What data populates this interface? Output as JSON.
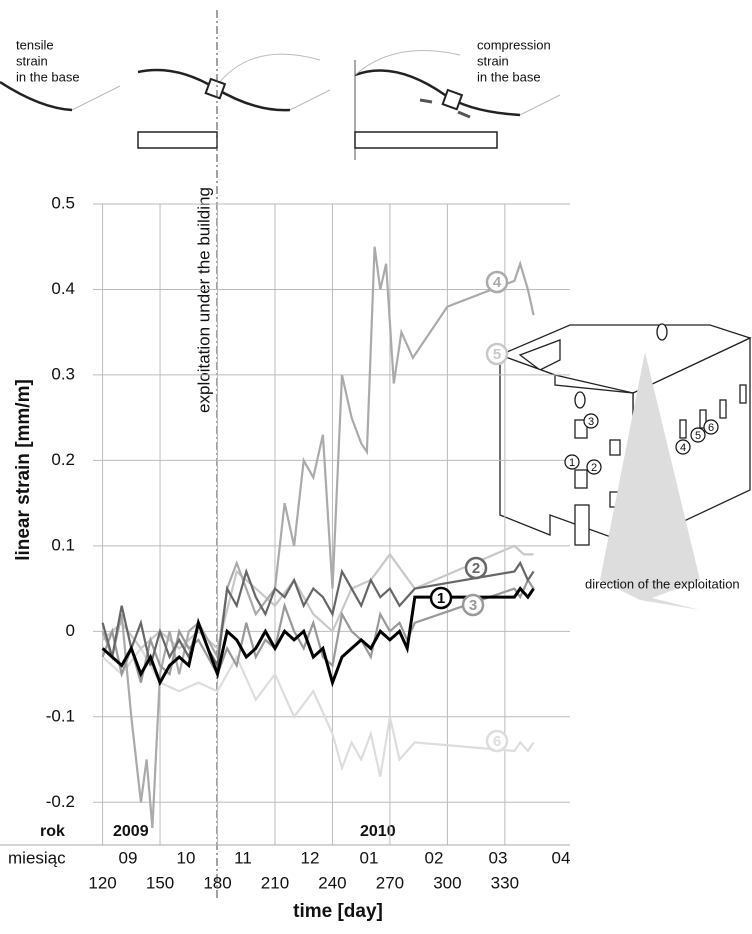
{
  "chart_data": {
    "type": "line",
    "xlabel": "time [day]",
    "ylabel": "linear strain [mm/m]",
    "xlim": [
      115,
      364
    ],
    "ylim": [
      -0.25,
      0.5
    ],
    "xticks": [
      120,
      150,
      180,
      210,
      240,
      270,
      300,
      330
    ],
    "yticks": [
      -0.2,
      -0.1,
      0,
      0.1,
      0.2,
      0.3,
      0.4,
      0.5
    ],
    "grid": true,
    "year_row_label": "rok",
    "years": [
      "2009",
      "2010"
    ],
    "month_row_label": "miesiąc",
    "months": [
      "09",
      "10",
      "11",
      "12",
      "01",
      "02",
      "03",
      "04"
    ],
    "event_label": "exploitation under the building",
    "tensile_text": [
      "tensile",
      "strain",
      "in the base"
    ],
    "compression_text": [
      "compression",
      "strain",
      "in the base"
    ],
    "direction_label": "direction of the exploitation",
    "series": [
      {
        "name": "1",
        "color": "#000000",
        "x": [
          120,
          125,
          130,
          135,
          140,
          145,
          150,
          155,
          160,
          165,
          170,
          175,
          180,
          185,
          190,
          195,
          200,
          205,
          210,
          215,
          220,
          225,
          230,
          235,
          240,
          245,
          250,
          255,
          260,
          265,
          270,
          275,
          279,
          283,
          335,
          338,
          342,
          345
        ],
        "values": [
          -0.02,
          -0.03,
          -0.04,
          -0.02,
          -0.05,
          -0.03,
          -0.06,
          -0.04,
          -0.03,
          -0.04,
          0.01,
          -0.02,
          -0.05,
          0,
          -0.01,
          -0.03,
          -0.02,
          0,
          -0.02,
          0,
          -0.01,
          0,
          -0.03,
          -0.02,
          -0.06,
          -0.03,
          -0.02,
          -0.01,
          -0.02,
          0,
          -0.01,
          0,
          -0.02,
          0.04,
          0.04,
          0.05,
          0.04,
          0.05
        ]
      },
      {
        "name": "2",
        "color": "#666666",
        "x": [
          120,
          125,
          130,
          135,
          140,
          145,
          150,
          155,
          160,
          165,
          170,
          175,
          180,
          185,
          190,
          195,
          200,
          205,
          210,
          215,
          220,
          225,
          230,
          235,
          240,
          245,
          250,
          255,
          260,
          265,
          270,
          275,
          279,
          283,
          335,
          338,
          342,
          345
        ],
        "values": [
          0.01,
          -0.03,
          0.03,
          -0.02,
          0.01,
          -0.04,
          0,
          -0.03,
          -0.01,
          -0.03,
          0.01,
          -0.02,
          -0.04,
          0.05,
          0.03,
          0.07,
          0.04,
          0.02,
          0.05,
          0.04,
          0.06,
          0.03,
          0.05,
          0.04,
          0.02,
          0.07,
          0.05,
          0.03,
          0.06,
          0.04,
          0.05,
          0.03,
          0.04,
          0.05,
          0.07,
          0.08,
          0.06,
          0.07
        ]
      },
      {
        "name": "3",
        "color": "#999999",
        "x": [
          120,
          125,
          130,
          135,
          140,
          145,
          150,
          155,
          160,
          165,
          170,
          175,
          180,
          185,
          190,
          195,
          200,
          205,
          210,
          215,
          220,
          225,
          230,
          235,
          240,
          245,
          250,
          255,
          260,
          265,
          270,
          275,
          279,
          283,
          335,
          338,
          342,
          345
        ],
        "values": [
          -0.03,
          0,
          -0.05,
          -0.02,
          -0.06,
          -0.01,
          -0.04,
          -0.05,
          0,
          -0.02,
          -0.01,
          -0.03,
          -0.05,
          -0.02,
          -0.04,
          0.01,
          -0.03,
          -0.01,
          -0.02,
          0.03,
          0,
          -0.02,
          0.01,
          -0.03,
          -0.04,
          0.02,
          0,
          -0.01,
          -0.03,
          0.02,
          0,
          0.01,
          -0.01,
          0.01,
          0.05,
          0.04,
          0.06,
          0.05
        ]
      },
      {
        "name": "4",
        "color": "#aaaaaa",
        "x": [
          120,
          125,
          130,
          135,
          140,
          143,
          146,
          150,
          155,
          160,
          165,
          170,
          180,
          185,
          190,
          200,
          210,
          215,
          220,
          225,
          230,
          235,
          240,
          245,
          250,
          255,
          258,
          262,
          265,
          268,
          272,
          276,
          282,
          300,
          335,
          338,
          342,
          345
        ],
        "values": [
          0,
          -0.03,
          0.02,
          -0.1,
          -0.2,
          -0.15,
          -0.23,
          -0.05,
          0,
          -0.05,
          0,
          0.01,
          -0.03,
          0.05,
          0.08,
          0.02,
          0.05,
          0.15,
          0.1,
          0.2,
          0.18,
          0.23,
          0.05,
          0.3,
          0.25,
          0.22,
          0.21,
          0.45,
          0.4,
          0.43,
          0.29,
          0.35,
          0.32,
          0.38,
          0.41,
          0.43,
          0.4,
          0.37
        ]
      },
      {
        "name": "5",
        "color": "#c8c8c8",
        "x": [
          120,
          130,
          140,
          150,
          160,
          170,
          180,
          190,
          200,
          210,
          220,
          230,
          240,
          250,
          260,
          270,
          283,
          335,
          340,
          345
        ],
        "values": [
          -0.01,
          0.01,
          -0.02,
          0,
          -0.02,
          0,
          -0.02,
          0.07,
          0.05,
          0.03,
          0.06,
          0.02,
          0,
          0.05,
          0.06,
          0.09,
          0.05,
          0.1,
          0.09,
          0.09
        ]
      },
      {
        "name": "6",
        "color": "#dddddd",
        "x": [
          120,
          130,
          140,
          150,
          160,
          170,
          180,
          190,
          200,
          210,
          220,
          230,
          240,
          245,
          250,
          255,
          260,
          265,
          270,
          275,
          283,
          335,
          338,
          342,
          345
        ],
        "values": [
          -0.03,
          -0.05,
          -0.02,
          -0.06,
          -0.07,
          -0.06,
          -0.07,
          -0.03,
          -0.08,
          -0.05,
          -0.1,
          -0.07,
          -0.12,
          -0.16,
          -0.13,
          -0.15,
          -0.12,
          -0.17,
          -0.1,
          -0.15,
          -0.13,
          -0.14,
          -0.13,
          -0.14,
          -0.13
        ]
      }
    ]
  }
}
